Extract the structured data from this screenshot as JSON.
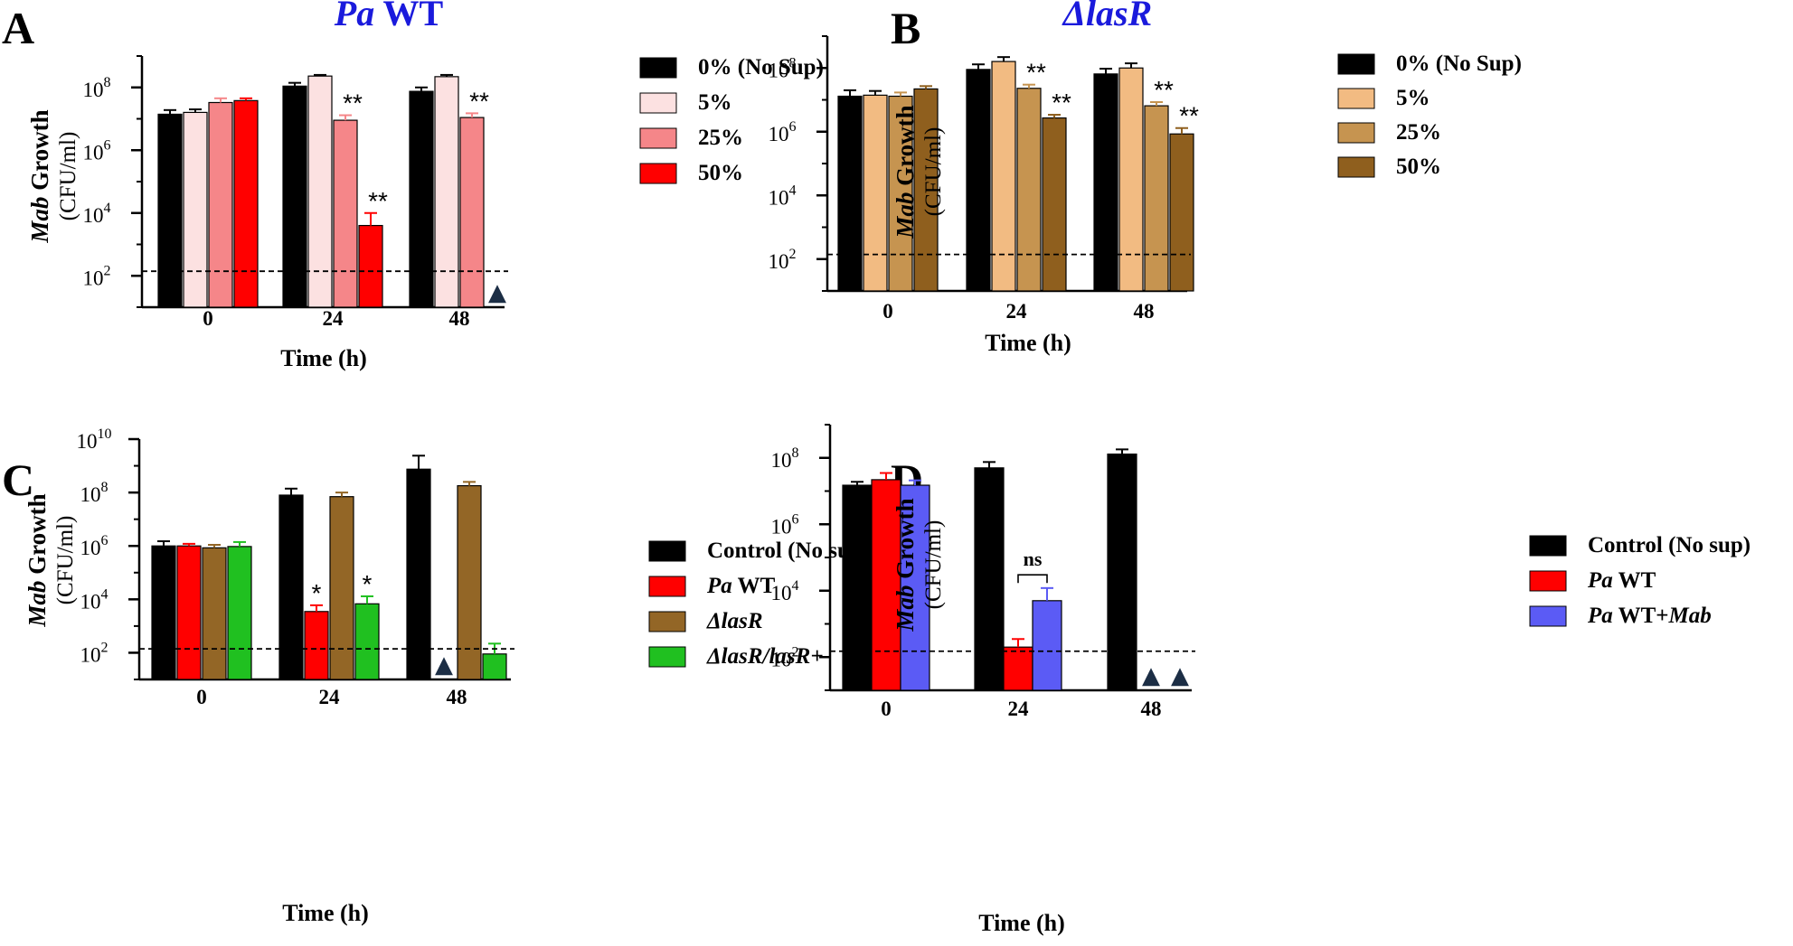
{
  "chart_data": [
    {
      "panel": "A",
      "type": "bar",
      "title_italic": "Pa",
      "title_rest": " WT",
      "ylabel_italic": "Mab",
      "ylabel_rest": " Growth",
      "ylabel_units": "(CFU/ml)",
      "xlabel": "Time (h)",
      "categories": [
        "0",
        "24",
        "48"
      ],
      "y_scale": "log10",
      "ylim": [
        10,
        1000000000
      ],
      "y_ticks": [
        {
          "base": "10",
          "exp": "2",
          "value": 100
        },
        {
          "base": "10",
          "exp": "4",
          "value": 10000
        },
        {
          "base": "10",
          "exp": "6",
          "value": 1000000
        },
        {
          "base": "10",
          "exp": "8",
          "value": 100000000
        }
      ],
      "detection_limit": 140,
      "series": [
        {
          "name": "0% (No Sup)",
          "color": "#000000",
          "values": [
            14000000,
            110000000,
            75000000
          ],
          "errors": [
            19000000,
            140000000,
            100000000
          ]
        },
        {
          "name": "5%",
          "color": "#fce1e1",
          "values": [
            16000000,
            230000000,
            220000000
          ],
          "errors": [
            20000000,
            250000000,
            250000000
          ]
        },
        {
          "name": "25%",
          "color": "#f58689",
          "values": [
            33000000,
            9000000,
            11000000
          ],
          "errors": [
            45000000,
            13000000,
            15000000
          ]
        },
        {
          "name": "50%",
          "color": "#ff0000",
          "values": [
            38000000,
            4000,
            null
          ],
          "errors": [
            45000000,
            10000,
            null
          ]
        }
      ],
      "annotations": [
        {
          "text": "**",
          "category": 1,
          "series": 2
        },
        {
          "text": "**",
          "category": 1,
          "series": 3
        },
        {
          "text": "**",
          "category": 2,
          "series": 2
        }
      ],
      "markers": [
        {
          "symbol": "▲",
          "category": 2,
          "series": 3
        }
      ]
    },
    {
      "panel": "B",
      "type": "bar",
      "title_italic": "ΔlasR",
      "title_rest": "",
      "ylabel_italic": "Mab",
      "ylabel_rest": " Growth",
      "ylabel_units": "(CFU/ml)",
      "xlabel": "Time (h)",
      "categories": [
        "0",
        "24",
        "48"
      ],
      "y_scale": "log10",
      "ylim": [
        10,
        1000000000
      ],
      "y_ticks": [
        {
          "base": "10",
          "exp": "2",
          "value": 100
        },
        {
          "base": "10",
          "exp": "4",
          "value": 10000
        },
        {
          "base": "10",
          "exp": "6",
          "value": 1000000
        },
        {
          "base": "10",
          "exp": "8",
          "value": 100000000
        }
      ],
      "detection_limit": 140,
      "series": [
        {
          "name": "0% (No Sup)",
          "color": "#000000",
          "values": [
            13000000,
            90000000,
            65000000
          ],
          "errors": [
            20000000,
            130000000,
            95000000
          ]
        },
        {
          "name": "5%",
          "color": "#f2bb82",
          "values": [
            14000000,
            160000000,
            100000000
          ],
          "errors": [
            19000000,
            220000000,
            140000000
          ]
        },
        {
          "name": "25%",
          "color": "#c69450",
          "values": [
            13000000,
            23000000,
            6500000
          ],
          "errors": [
            17000000,
            30000000,
            8500000
          ]
        },
        {
          "name": "50%",
          "color": "#8f5f1e",
          "values": [
            22000000,
            2700000,
            850000
          ],
          "errors": [
            27000000,
            3400000,
            1300000
          ]
        }
      ],
      "annotations": [
        {
          "text": "**",
          "category": 1,
          "series": 2
        },
        {
          "text": "**",
          "category": 1,
          "series": 3
        },
        {
          "text": "**",
          "category": 2,
          "series": 2
        },
        {
          "text": "**",
          "category": 2,
          "series": 3
        }
      ],
      "markers": []
    },
    {
      "panel": "C",
      "type": "bar",
      "title_italic": "",
      "title_rest": "",
      "ylabel_italic": "Mab",
      "ylabel_rest": " Growth",
      "ylabel_units": "(CFU/ml)",
      "xlabel": "Time (h)",
      "categories": [
        "0",
        "24",
        "48"
      ],
      "y_scale": "log10",
      "ylim": [
        10,
        10000000000
      ],
      "y_ticks": [
        {
          "base": "10",
          "exp": "2",
          "value": 100
        },
        {
          "base": "10",
          "exp": "4",
          "value": 10000
        },
        {
          "base": "10",
          "exp": "6",
          "value": 1000000
        },
        {
          "base": "10",
          "exp": "8",
          "value": 100000000
        },
        {
          "base": "10",
          "exp": "10",
          "value": 10000000000
        }
      ],
      "detection_limit": 140,
      "series": [
        {
          "name": "Control (No sup)",
          "color": "#000000",
          "values": [
            1000000,
            80000000,
            750000000
          ],
          "errors": [
            1500000,
            140000000,
            2400000000
          ]
        },
        {
          "name": "Pa WT",
          "name_italic": "Pa",
          "name_rest": " WT",
          "color": "#ff0000",
          "values": [
            1000000,
            3500,
            null
          ],
          "errors": [
            1200000,
            6000,
            null
          ]
        },
        {
          "name": "ΔlasR",
          "name_italic": "ΔlasR",
          "name_rest": "",
          "color": "#936626",
          "values": [
            850000,
            70000000,
            180000000
          ],
          "errors": [
            1100000,
            100000000,
            250000000
          ]
        },
        {
          "name": "ΔlasR/lasR+",
          "name_italic": "ΔlasR/lasR+",
          "name_rest": "",
          "color": "#20c020",
          "values": [
            950000,
            6800,
            90
          ],
          "errors": [
            1400000,
            13000,
            220
          ]
        }
      ],
      "annotations": [
        {
          "text": "*",
          "category": 1,
          "series": 1
        },
        {
          "text": "*",
          "category": 1,
          "series": 3
        }
      ],
      "markers": [
        {
          "symbol": "▲",
          "category": 2,
          "series": 1
        }
      ]
    },
    {
      "panel": "D",
      "type": "bar",
      "title_italic": "",
      "title_rest": "",
      "ylabel_italic": "Mab",
      "ylabel_rest": " Growth",
      "ylabel_units": "(CFU/ml)",
      "xlabel": "Time (h)",
      "categories": [
        "0",
        "24",
        "48"
      ],
      "y_scale": "log10",
      "ylim": [
        10,
        1000000000
      ],
      "y_ticks": [
        {
          "base": "10",
          "exp": "2",
          "value": 100
        },
        {
          "base": "10",
          "exp": "4",
          "value": 10000
        },
        {
          "base": "10",
          "exp": "6",
          "value": 1000000
        },
        {
          "base": "10",
          "exp": "8",
          "value": 100000000
        }
      ],
      "detection_limit": 150,
      "series": [
        {
          "name": "Control (No sup)",
          "color": "#000000",
          "values": [
            15000000,
            50000000,
            130000000
          ],
          "errors": [
            19000000,
            75000000,
            180000000
          ]
        },
        {
          "name": "Pa WT",
          "name_italic": "Pa",
          "name_rest": " WT",
          "color": "#ff0000",
          "values": [
            22000000,
            200,
            null
          ],
          "errors": [
            35000000,
            350,
            null
          ]
        },
        {
          "name": "Pa WT+Mab",
          "name_italic": "Pa",
          "name_rest": " WT+",
          "name_italic2": "Mab",
          "color": "#5b5bf5",
          "values": [
            15000000,
            5000,
            null
          ],
          "errors": [
            21000000,
            12000,
            null
          ]
        }
      ],
      "annotations": [],
      "bracket": {
        "text": "ns",
        "category": 1,
        "from_series": 1,
        "to_series": 2
      },
      "markers": [
        {
          "symbol": "▲",
          "category": 2,
          "series": 1
        },
        {
          "symbol": "▲",
          "category": 2,
          "series": 2
        }
      ]
    }
  ]
}
